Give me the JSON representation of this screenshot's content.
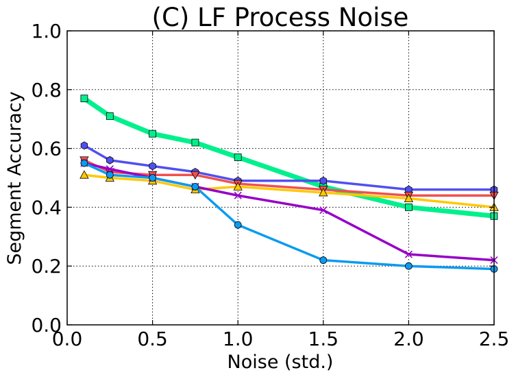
{
  "chart_data": {
    "type": "line",
    "title": "(C) LF Process Noise",
    "xlabel": "Noise (std.)",
    "ylabel": "Segment Accuracy",
    "xlim": [
      0.0,
      2.5
    ],
    "ylim": [
      0.0,
      1.0
    ],
    "xticks": [
      "0.0",
      "0.5",
      "1.0",
      "1.5",
      "2.0",
      "2.5"
    ],
    "yticks": [
      "0.0",
      "0.2",
      "0.4",
      "0.6",
      "0.8",
      "1.0"
    ],
    "grid": true,
    "series": [
      {
        "color": "#00f08c",
        "marker": "square",
        "linewidth": 7,
        "x": [
          0.1,
          0.25,
          0.5,
          0.75,
          1.0,
          1.5,
          2.0,
          2.5
        ],
        "y": [
          0.77,
          0.71,
          0.65,
          0.62,
          0.57,
          0.47,
          0.4,
          0.37
        ]
      },
      {
        "color": "#5050f0",
        "marker": "hexagon",
        "linewidth": 3.5,
        "x": [
          0.1,
          0.25,
          0.5,
          0.75,
          1.0,
          1.5,
          2.0,
          2.5
        ],
        "y": [
          0.61,
          0.56,
          0.54,
          0.52,
          0.49,
          0.49,
          0.46,
          0.46
        ]
      },
      {
        "color": "#f05050",
        "marker": "triangle-down",
        "linewidth": 3.5,
        "x": [
          0.1,
          0.25,
          0.5,
          0.75,
          1.0,
          1.5,
          2.0,
          2.5
        ],
        "y": [
          0.56,
          0.52,
          0.51,
          0.51,
          0.48,
          0.46,
          0.44,
          0.44
        ]
      },
      {
        "color": "#ffc800",
        "marker": "triangle-up",
        "linewidth": 3.5,
        "x": [
          0.1,
          0.25,
          0.5,
          0.75,
          1.0,
          1.5,
          2.0,
          2.5
        ],
        "y": [
          0.51,
          0.5,
          0.49,
          0.46,
          0.47,
          0.45,
          0.43,
          0.4
        ]
      },
      {
        "color": "#9600c8",
        "marker": "x",
        "linewidth": 3.5,
        "x": [
          0.1,
          0.25,
          0.5,
          0.75,
          1.0,
          1.5,
          2.0,
          2.5
        ],
        "y": [
          0.55,
          0.53,
          0.5,
          0.47,
          0.44,
          0.39,
          0.24,
          0.22
        ]
      },
      {
        "color": "#0a9bf0",
        "marker": "circle",
        "linewidth": 3.5,
        "x": [
          0.1,
          0.25,
          0.5,
          0.75,
          1.0,
          1.5,
          2.0,
          2.5
        ],
        "y": [
          0.55,
          0.51,
          0.5,
          0.47,
          0.34,
          0.22,
          0.2,
          0.19
        ]
      }
    ]
  }
}
